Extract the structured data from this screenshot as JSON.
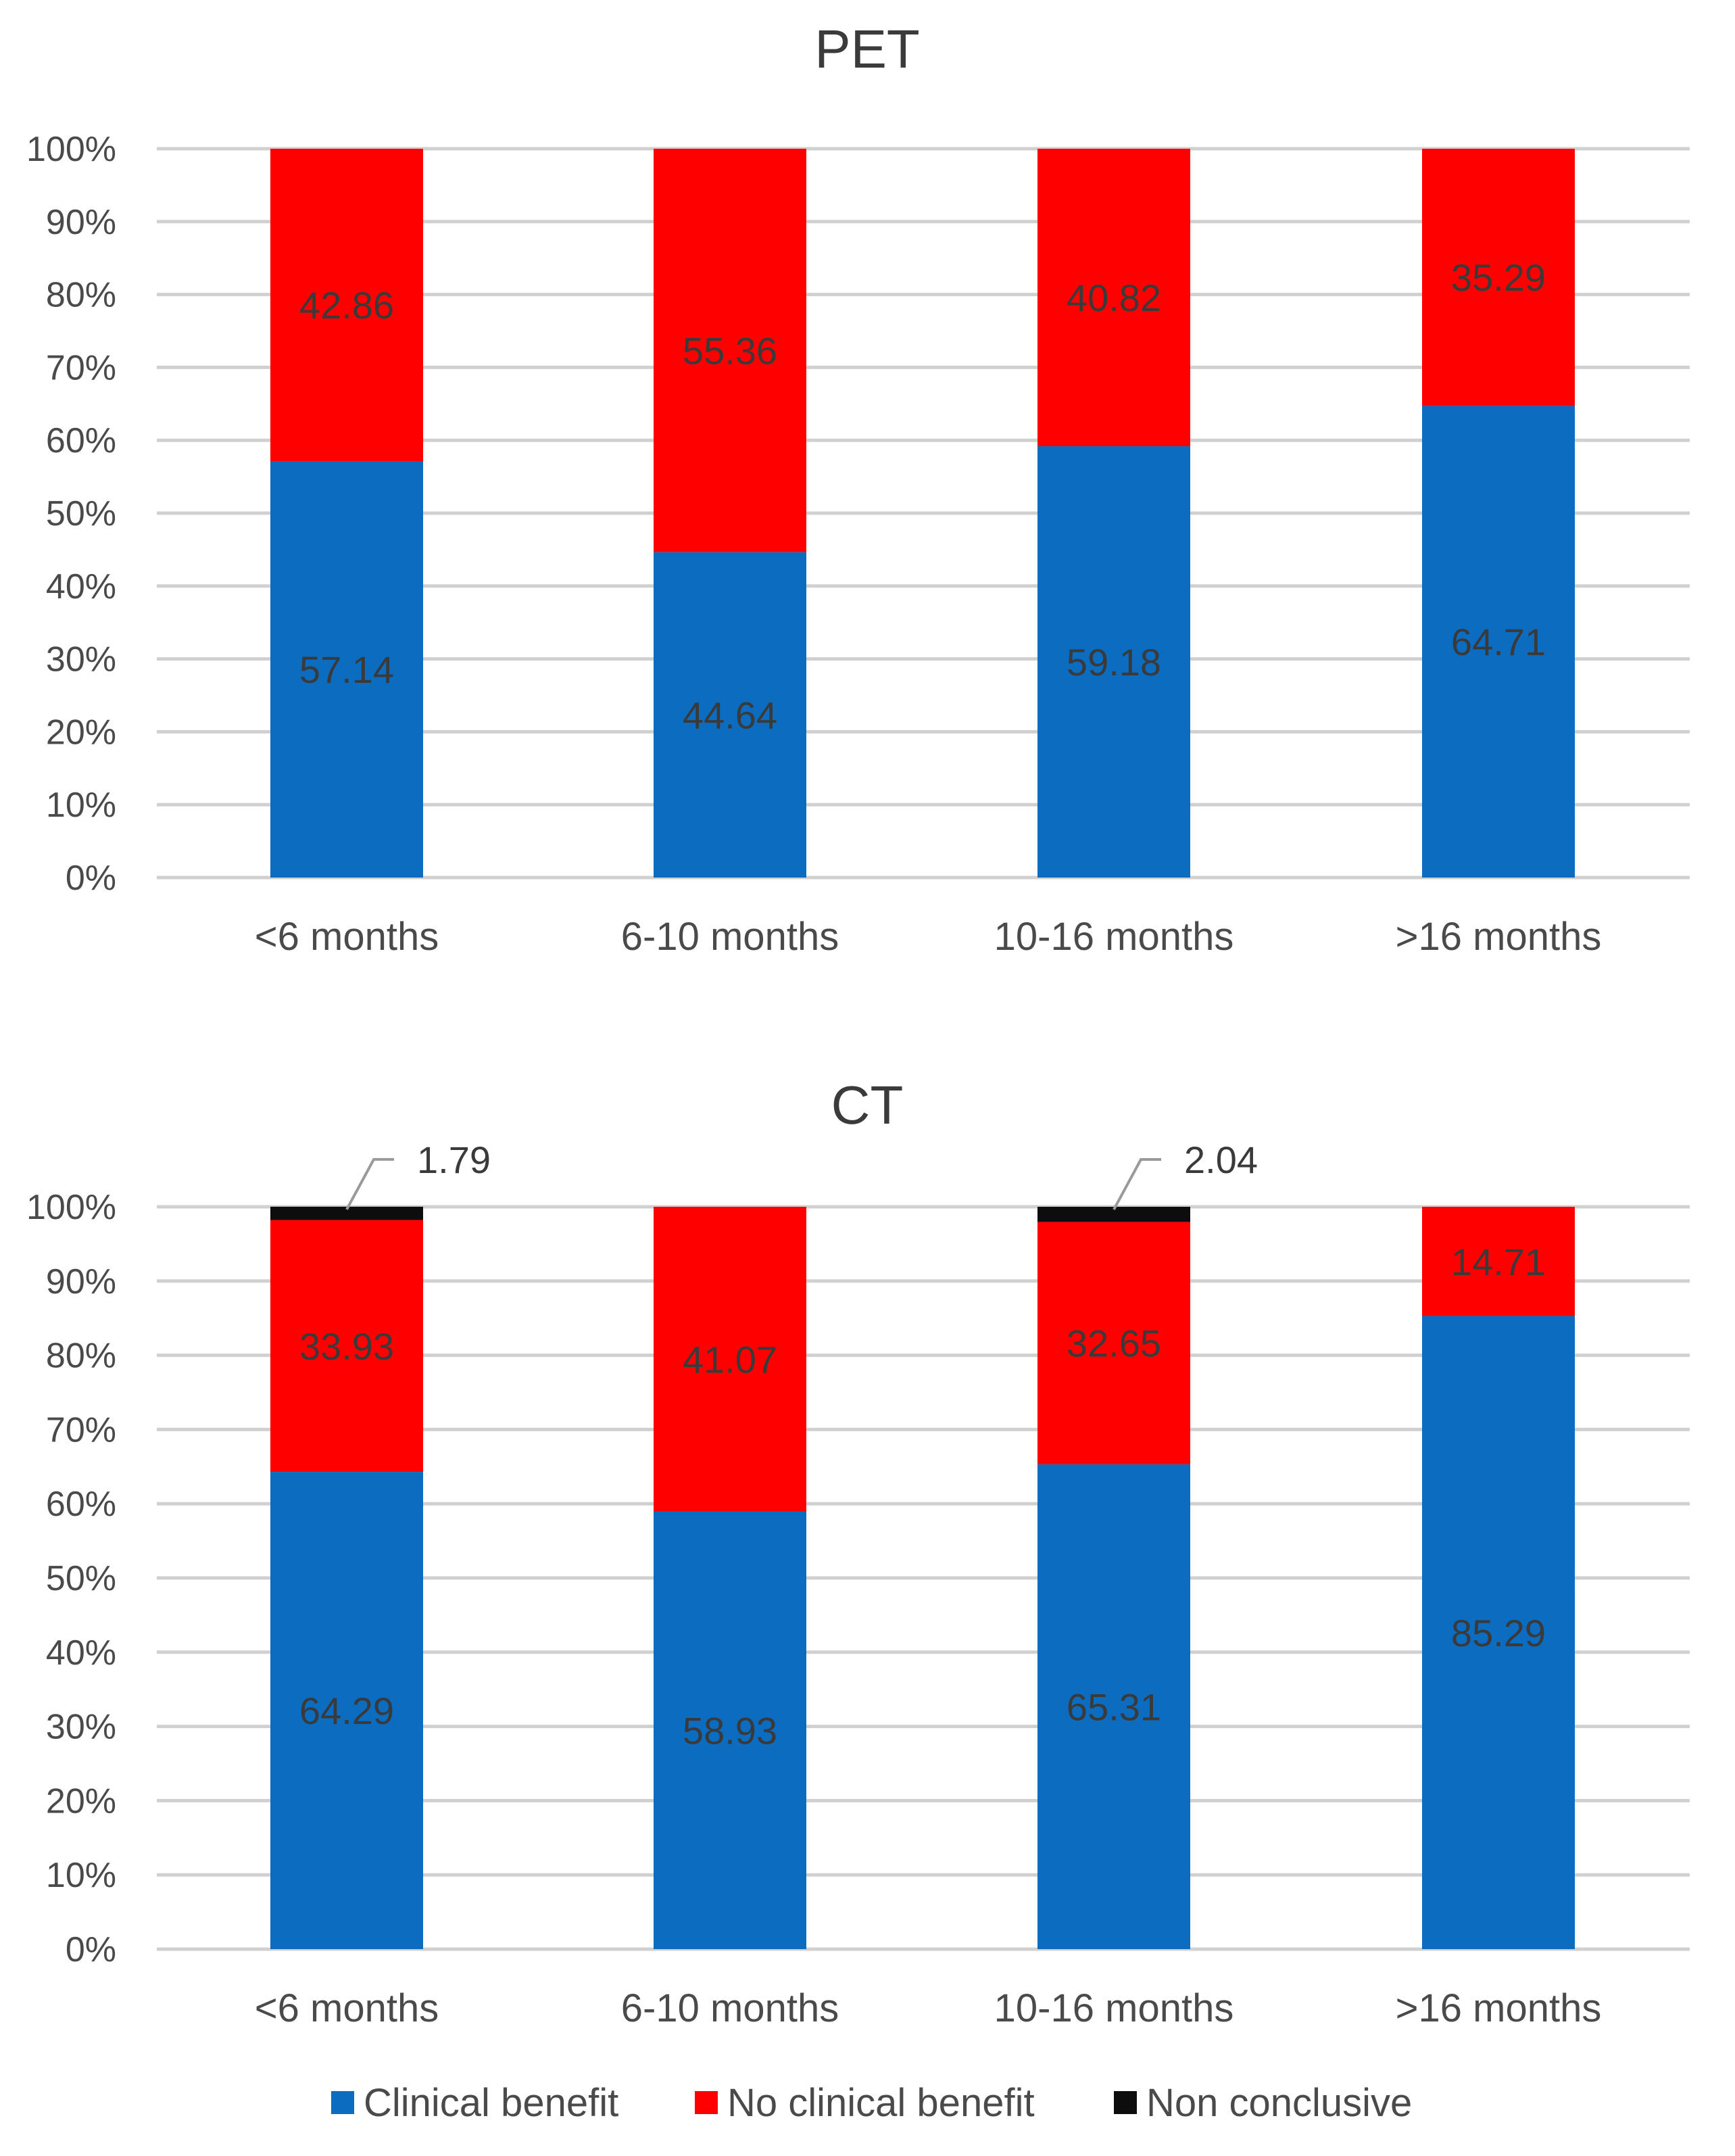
{
  "colors": {
    "clinical_benefit": "#0b6cc0",
    "no_clinical_benefit": "#ff0000",
    "non_conclusive": "#0d0d0d"
  },
  "chart_data": [
    {
      "id": "pet",
      "type": "bar",
      "stacked": true,
      "title": "PET",
      "xlabel": "",
      "ylabel": "",
      "ylim": [
        0,
        100
      ],
      "y_ticks": [
        "0%",
        "10%",
        "20%",
        "30%",
        "40%",
        "50%",
        "60%",
        "70%",
        "80%",
        "90%",
        "100%"
      ],
      "grid": true,
      "categories": [
        "<6 months",
        "6-10 months",
        "10-16 months",
        ">16 months"
      ],
      "series": [
        {
          "name": "Clinical benefit",
          "values": [
            57.14,
            44.64,
            59.18,
            64.71
          ]
        },
        {
          "name": "No clinical benefit",
          "values": [
            42.86,
            55.36,
            40.82,
            35.29
          ]
        },
        {
          "name": "Non conclusive",
          "values": [
            0,
            0,
            0,
            0
          ]
        }
      ],
      "data_labels": [
        [
          "57.14",
          "44.64",
          "59.18",
          "64.71"
        ],
        [
          "42.86",
          "55.36",
          "40.82",
          "35.29"
        ],
        [
          "",
          "",
          "",
          ""
        ]
      ]
    },
    {
      "id": "ct",
      "type": "bar",
      "stacked": true,
      "title": "CT",
      "xlabel": "",
      "ylabel": "",
      "ylim": [
        0,
        100
      ],
      "y_ticks": [
        "0%",
        "10%",
        "20%",
        "30%",
        "40%",
        "50%",
        "60%",
        "70%",
        "80%",
        "90%",
        "100%"
      ],
      "grid": true,
      "categories": [
        "<6 months",
        "6-10 months",
        "10-16 months",
        ">16 months"
      ],
      "series": [
        {
          "name": "Clinical benefit",
          "values": [
            64.29,
            58.93,
            65.31,
            85.29
          ]
        },
        {
          "name": "No clinical benefit",
          "values": [
            33.93,
            41.07,
            32.65,
            14.71
          ]
        },
        {
          "name": "Non conclusive",
          "values": [
            1.79,
            0,
            2.04,
            0
          ]
        }
      ],
      "data_labels": [
        [
          "64.29",
          "58.93",
          "65.31",
          "85.29"
        ],
        [
          "33.93",
          "41.07",
          "32.65",
          "14.71"
        ],
        [
          "1.79",
          "",
          "2.04",
          ""
        ]
      ]
    }
  ],
  "legend": {
    "position": "bottom",
    "items": [
      {
        "label": "Clinical benefit",
        "color": "#0b6cc0"
      },
      {
        "label": "No clinical benefit",
        "color": "#ff0000"
      },
      {
        "label": "Non conclusive",
        "color": "#0d0d0d"
      }
    ]
  }
}
